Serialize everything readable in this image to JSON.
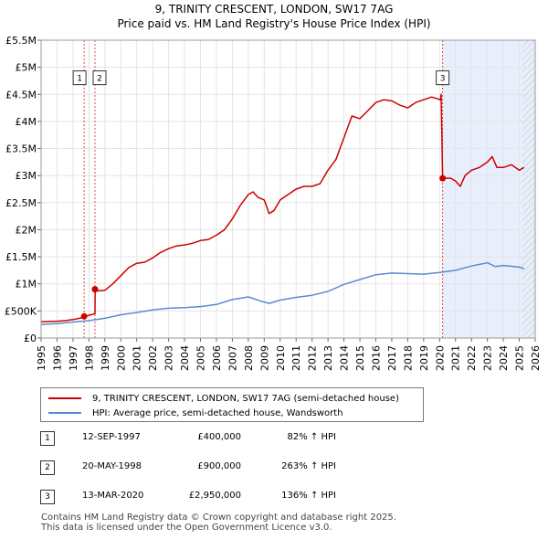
{
  "title_line1": "9, TRINITY CRESCENT, LONDON, SW17 7AG",
  "title_line2": "Price paid vs. HM Land Registry's House Price Index (HPI)",
  "chart_data": {
    "type": "line",
    "ylim": [
      0,
      5500000
    ],
    "xlim": [
      1995,
      2026
    ],
    "y_ticks": [
      {
        "value": 0,
        "label": "£0"
      },
      {
        "value": 500000,
        "label": "£500K"
      },
      {
        "value": 1000000,
        "label": "£1M"
      },
      {
        "value": 1500000,
        "label": "£1.5M"
      },
      {
        "value": 2000000,
        "label": "£2M"
      },
      {
        "value": 2500000,
        "label": "£2.5M"
      },
      {
        "value": 3000000,
        "label": "£3M"
      },
      {
        "value": 3500000,
        "label": "£3.5M"
      },
      {
        "value": 4000000,
        "label": "£4M"
      },
      {
        "value": 4500000,
        "label": "£4.5M"
      },
      {
        "value": 5000000,
        "label": "£5M"
      },
      {
        "value": 5500000,
        "label": "£5.5M"
      }
    ],
    "x_ticks": [
      "1995",
      "1996",
      "1997",
      "1998",
      "1999",
      "2000",
      "2001",
      "2002",
      "2003",
      "2004",
      "2005",
      "2006",
      "2007",
      "2008",
      "2009",
      "2010",
      "2011",
      "2012",
      "2013",
      "2014",
      "2015",
      "2016",
      "2017",
      "2018",
      "2019",
      "2020",
      "2021",
      "2022",
      "2023",
      "2024",
      "2025",
      "2026"
    ],
    "series": [
      {
        "name": "9, TRINITY CRESCENT, LONDON, SW17 7AG (semi-detached house)",
        "color": "#cc0000",
        "points": [
          [
            1995.0,
            300000
          ],
          [
            1995.5,
            305000
          ],
          [
            1996.0,
            310000
          ],
          [
            1996.5,
            320000
          ],
          [
            1997.0,
            340000
          ],
          [
            1997.5,
            370000
          ],
          [
            1997.7,
            400000
          ],
          [
            1998.0,
            420000
          ],
          [
            1998.38,
            450000
          ],
          [
            1998.39,
            900000
          ],
          [
            1998.6,
            870000
          ],
          [
            1999.0,
            880000
          ],
          [
            1999.5,
            1000000
          ],
          [
            2000.0,
            1150000
          ],
          [
            2000.5,
            1300000
          ],
          [
            2001.0,
            1380000
          ],
          [
            2001.5,
            1400000
          ],
          [
            2002.0,
            1480000
          ],
          [
            2002.5,
            1580000
          ],
          [
            2003.0,
            1650000
          ],
          [
            2003.5,
            1700000
          ],
          [
            2004.0,
            1720000
          ],
          [
            2004.5,
            1750000
          ],
          [
            2005.0,
            1800000
          ],
          [
            2005.5,
            1820000
          ],
          [
            2006.0,
            1900000
          ],
          [
            2006.5,
            2000000
          ],
          [
            2007.0,
            2200000
          ],
          [
            2007.5,
            2450000
          ],
          [
            2008.0,
            2650000
          ],
          [
            2008.3,
            2700000
          ],
          [
            2008.6,
            2600000
          ],
          [
            2009.0,
            2550000
          ],
          [
            2009.3,
            2300000
          ],
          [
            2009.6,
            2350000
          ],
          [
            2010.0,
            2550000
          ],
          [
            2010.5,
            2650000
          ],
          [
            2011.0,
            2750000
          ],
          [
            2011.5,
            2800000
          ],
          [
            2012.0,
            2800000
          ],
          [
            2012.5,
            2850000
          ],
          [
            2013.0,
            3100000
          ],
          [
            2013.5,
            3300000
          ],
          [
            2014.0,
            3700000
          ],
          [
            2014.5,
            4100000
          ],
          [
            2015.0,
            4050000
          ],
          [
            2015.5,
            4200000
          ],
          [
            2016.0,
            4350000
          ],
          [
            2016.5,
            4400000
          ],
          [
            2017.0,
            4380000
          ],
          [
            2017.5,
            4300000
          ],
          [
            2018.0,
            4250000
          ],
          [
            2018.5,
            4350000
          ],
          [
            2019.0,
            4400000
          ],
          [
            2019.5,
            4450000
          ],
          [
            2020.05,
            4400000
          ],
          [
            2020.1,
            4500000
          ],
          [
            2020.19,
            2950000
          ],
          [
            2020.4,
            2950000
          ],
          [
            2020.7,
            2950000
          ],
          [
            2021.0,
            2900000
          ],
          [
            2021.3,
            2800000
          ],
          [
            2021.6,
            3000000
          ],
          [
            2022.0,
            3100000
          ],
          [
            2022.5,
            3150000
          ],
          [
            2023.0,
            3250000
          ],
          [
            2023.3,
            3350000
          ],
          [
            2023.6,
            3150000
          ],
          [
            2024.0,
            3150000
          ],
          [
            2024.5,
            3200000
          ],
          [
            2025.0,
            3100000
          ],
          [
            2025.3,
            3150000
          ]
        ]
      },
      {
        "name": "HPI: Average price, semi-detached house, Wandsworth",
        "color": "#5b8bd0",
        "points": [
          [
            1995.0,
            250000
          ],
          [
            1996.0,
            265000
          ],
          [
            1997.0,
            295000
          ],
          [
            1998.0,
            320000
          ],
          [
            1999.0,
            365000
          ],
          [
            2000.0,
            430000
          ],
          [
            2001.0,
            470000
          ],
          [
            2002.0,
            520000
          ],
          [
            2003.0,
            550000
          ],
          [
            2004.0,
            560000
          ],
          [
            2005.0,
            580000
          ],
          [
            2006.0,
            620000
          ],
          [
            2007.0,
            710000
          ],
          [
            2008.0,
            760000
          ],
          [
            2008.7,
            690000
          ],
          [
            2009.3,
            640000
          ],
          [
            2010.0,
            700000
          ],
          [
            2011.0,
            750000
          ],
          [
            2012.0,
            790000
          ],
          [
            2013.0,
            860000
          ],
          [
            2014.0,
            990000
          ],
          [
            2015.0,
            1080000
          ],
          [
            2016.0,
            1170000
          ],
          [
            2017.0,
            1200000
          ],
          [
            2018.0,
            1190000
          ],
          [
            2019.0,
            1180000
          ],
          [
            2020.0,
            1210000
          ],
          [
            2021.0,
            1250000
          ],
          [
            2022.0,
            1330000
          ],
          [
            2023.0,
            1390000
          ],
          [
            2023.5,
            1320000
          ],
          [
            2024.0,
            1340000
          ],
          [
            2025.0,
            1310000
          ],
          [
            2025.3,
            1280000
          ]
        ]
      }
    ],
    "sales": [
      {
        "id": "1",
        "x": 1997.7,
        "price": 400000
      },
      {
        "id": "2",
        "x": 1998.38,
        "price": 900000
      },
      {
        "id": "3",
        "x": 2020.19,
        "price": 2950000
      }
    ],
    "shade_from": 2020.19,
    "shade_to": 2026,
    "hatch_from": 2025.2
  },
  "legend": {
    "property_label": "9, TRINITY CRESCENT, LONDON, SW17 7AG (semi-detached house)",
    "hpi_label": "HPI: Average price, semi-detached house, Wandsworth"
  },
  "sales_table": [
    {
      "num": "1",
      "date": "12-SEP-1997",
      "price": "£400,000",
      "hpi": "82% ↑ HPI"
    },
    {
      "num": "2",
      "date": "20-MAY-1998",
      "price": "£900,000",
      "hpi": "263% ↑ HPI"
    },
    {
      "num": "3",
      "date": "13-MAR-2020",
      "price": "£2,950,000",
      "hpi": "136% ↑ HPI"
    }
  ],
  "footer_line1": "Contains HM Land Registry data © Crown copyright and database right 2025.",
  "footer_line2": "This data is licensed under the Open Government Licence v3.0."
}
